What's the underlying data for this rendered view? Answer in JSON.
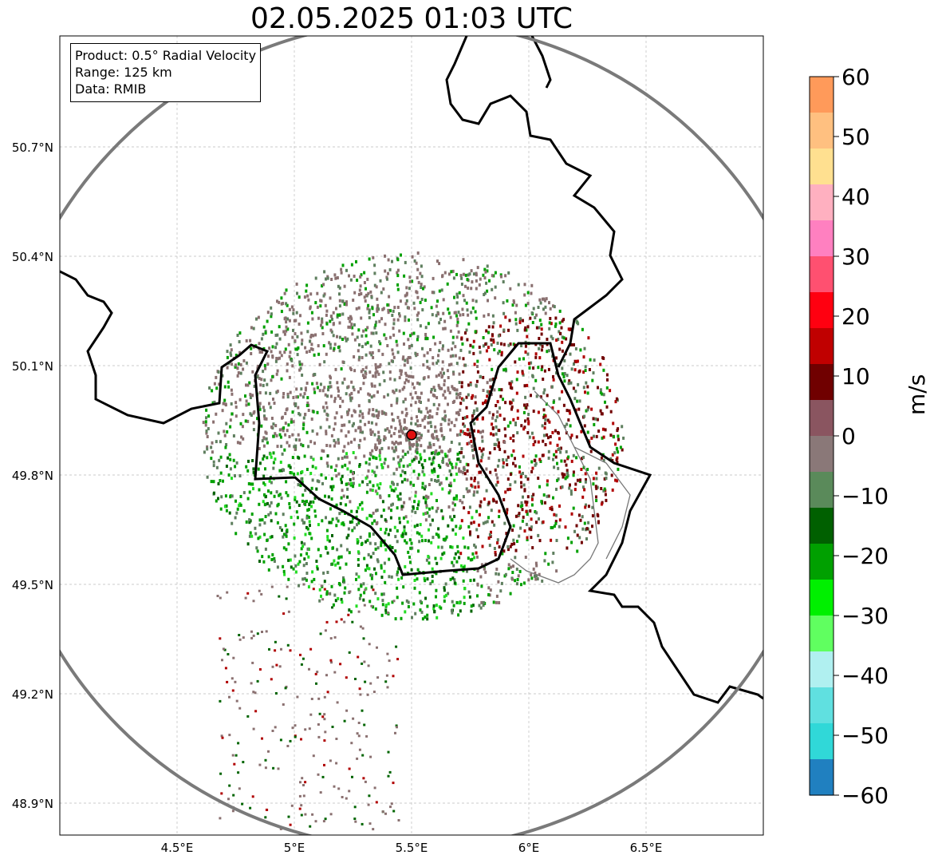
{
  "title": "02.05.2025 01:03 UTC",
  "info": {
    "product": "Product: 0.5° Radial Velocity",
    "range": "Range: 125 km",
    "data": "Data: RMIB"
  },
  "map": {
    "lon_range": [
      4.0,
      7.0
    ],
    "lat_range": [
      48.8,
      51.0
    ],
    "x_ticks": [
      "4.5°E",
      "5°E",
      "5.5°E",
      "6°E",
      "6.5°E"
    ],
    "y_ticks": [
      "50.7°N",
      "50.4°N",
      "50.1°N",
      "49.8°N",
      "49.5°N",
      "49.2°N",
      "48.9°N"
    ],
    "radar_site": {
      "lon": 5.5,
      "lat": 49.91,
      "color": "#e01010"
    },
    "range_ring_km": 125,
    "grid": true
  },
  "colorbar": {
    "label": "m/s",
    "ticks": [
      "60",
      "50",
      "40",
      "30",
      "20",
      "10",
      "0",
      "−10",
      "−20",
      "−30",
      "−40",
      "−50",
      "−60"
    ],
    "min": -60,
    "max": 60,
    "colors": [
      "#ff9a5a",
      "#ffc080",
      "#ffe090",
      "#ffb0c0",
      "#ff80c0",
      "#ff5070",
      "#ff0010",
      "#c00000",
      "#700000",
      "#8a5560",
      "#8a7878",
      "#5a8a5a",
      "#006000",
      "#00a000",
      "#00f000",
      "#60ff60",
      "#b0f0f0",
      "#60e0e0",
      "#30d8d8",
      "#2080c0"
    ]
  }
}
